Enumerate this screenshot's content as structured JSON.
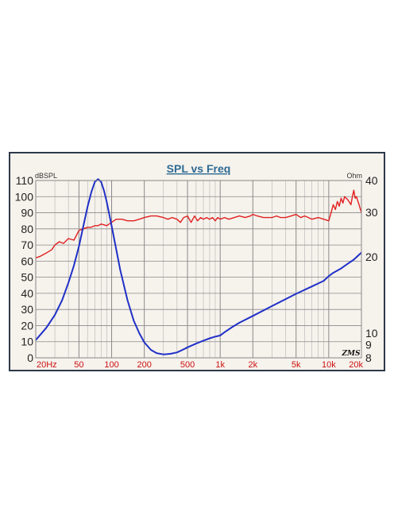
{
  "chart_data": {
    "type": "line",
    "title": "SPL vs Freq",
    "y_left_label": "dBSPL",
    "y_right_label": "Ohm",
    "x_scale": "log",
    "x_range": [
      20,
      20000
    ],
    "y_left_range": [
      0,
      110
    ],
    "y_right_range": [
      8,
      40
    ],
    "y_right_scale": "log",
    "x_ticks": [
      {
        "value": 20,
        "label": "20Hz"
      },
      {
        "value": 50,
        "label": "50"
      },
      {
        "value": 100,
        "label": "100"
      },
      {
        "value": 200,
        "label": "200"
      },
      {
        "value": 500,
        "label": "500"
      },
      {
        "value": 1000,
        "label": "1k"
      },
      {
        "value": 2000,
        "label": "2k"
      },
      {
        "value": 5000,
        "label": "5k"
      },
      {
        "value": 10000,
        "label": "10k"
      },
      {
        "value": 20000,
        "label": "20k"
      }
    ],
    "y_left_ticks": [
      0,
      10,
      20,
      30,
      40,
      50,
      60,
      70,
      80,
      90,
      100,
      110
    ],
    "y_right_ticks": [
      8,
      9,
      10,
      20,
      30,
      40
    ],
    "grid": true,
    "series": [
      {
        "axis": "left",
        "color": "#e02020",
        "x": [
          20,
          22,
          25,
          28,
          30,
          33,
          36,
          40,
          45,
          50,
          55,
          60,
          65,
          70,
          75,
          80,
          90,
          100,
          110,
          125,
          140,
          160,
          180,
          200,
          230,
          260,
          300,
          330,
          360,
          400,
          430,
          460,
          500,
          540,
          580,
          620,
          660,
          700,
          750,
          800,
          850,
          900,
          950,
          1000,
          1100,
          1200,
          1350,
          1500,
          1700,
          1900,
          2000,
          2200,
          2500,
          2800,
          3000,
          3300,
          3600,
          4000,
          4500,
          5000,
          5500,
          6000,
          6500,
          7000,
          8000,
          9000,
          10000,
          10500,
          11000,
          11500,
          12000,
          12500,
          13000,
          13500,
          14000,
          15000,
          16000,
          16500,
          17000,
          17500,
          18000,
          19000,
          20000
        ],
        "y": [
          62,
          63,
          65,
          67,
          70,
          72,
          71,
          74,
          73,
          79,
          80,
          81,
          81,
          82,
          82,
          83,
          82,
          84,
          86,
          86,
          85,
          85,
          86,
          87,
          88,
          88,
          87,
          86,
          87,
          86,
          84,
          87,
          88,
          84,
          88,
          85,
          87,
          86,
          87,
          86,
          87,
          85,
          87,
          86,
          87,
          86,
          87,
          88,
          87,
          88,
          89,
          88,
          87,
          87,
          87,
          88,
          87,
          87,
          88,
          89,
          87,
          88,
          87,
          86,
          87,
          86,
          85,
          90,
          95,
          92,
          97,
          94,
          99,
          96,
          100,
          98,
          95,
          100,
          104,
          99,
          100,
          95,
          90
        ]
      },
      {
        "axis": "right",
        "color": "#2030c8",
        "x": [
          20,
          25,
          30,
          35,
          40,
          45,
          50,
          55,
          60,
          65,
          70,
          75,
          80,
          85,
          90,
          95,
          100,
          110,
          120,
          140,
          160,
          180,
          200,
          230,
          260,
          300,
          350,
          400,
          450,
          500,
          600,
          700,
          800,
          900,
          950,
          1000,
          1100,
          1300,
          1500,
          2000,
          3000,
          5000,
          7000,
          9000,
          10000,
          11000,
          13000,
          15000,
          17000,
          20000
        ],
        "y": [
          9.4,
          10.5,
          11.8,
          13.5,
          15.8,
          18.5,
          22,
          26.5,
          31.5,
          36,
          39.5,
          40.5,
          39.5,
          36.5,
          33,
          29.5,
          26.5,
          21.5,
          17.8,
          13.5,
          11.2,
          10,
          9.2,
          8.6,
          8.35,
          8.25,
          8.3,
          8.4,
          8.6,
          8.8,
          9.1,
          9.35,
          9.55,
          9.7,
          9.75,
          9.8,
          10.1,
          10.6,
          11,
          11.7,
          12.8,
          14.3,
          15.3,
          16.1,
          16.8,
          17.3,
          18,
          18.8,
          19.5,
          20.8
        ]
      }
    ],
    "annotation": "ZMS"
  }
}
